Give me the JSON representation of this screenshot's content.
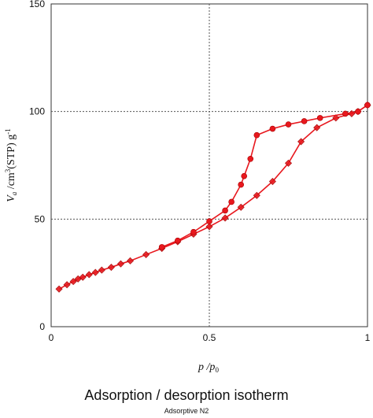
{
  "chart_data": {
    "type": "line",
    "title": "Adsorption / desorption isotherm",
    "subtitle": "Adsorptive N2",
    "xlabel": [
      "p",
      " /p",
      "0"
    ],
    "ylabel": [
      "V",
      "a",
      " /cm",
      "3",
      "(STP) g",
      "-1"
    ],
    "xlim": [
      0,
      1
    ],
    "xticks": [
      0,
      0.5,
      1
    ],
    "ylim": [
      0,
      150
    ],
    "yticks": [
      0,
      50,
      100,
      150
    ],
    "grid": true,
    "series": [
      {
        "color": "#e8181e",
        "marker": "diamond",
        "x": [
          0.025,
          0.05,
          0.07,
          0.085,
          0.1,
          0.12,
          0.14,
          0.16,
          0.19,
          0.22,
          0.25,
          0.3,
          0.35,
          0.4,
          0.45,
          0.5,
          0.55,
          0.6,
          0.65,
          0.7,
          0.75,
          0.79,
          0.84,
          0.9,
          0.95,
          0.97,
          1.0
        ],
        "values": [
          17.5,
          19.5,
          21,
          22.2,
          23,
          24.2,
          25.2,
          26.3,
          27.6,
          29.2,
          30.6,
          33.5,
          36.4,
          39.5,
          43,
          46.5,
          50.5,
          55.5,
          61,
          67.5,
          76,
          86,
          92.5,
          97,
          99,
          100,
          103
        ]
      },
      {
        "color": "#e8181e",
        "marker": "circle",
        "x": [
          1.0,
          0.97,
          0.93,
          0.85,
          0.8,
          0.75,
          0.7,
          0.65,
          0.63,
          0.61,
          0.6,
          0.57,
          0.55,
          0.5,
          0.45,
          0.4,
          0.35
        ],
        "values": [
          103,
          100,
          99,
          97,
          95.5,
          94,
          92,
          89,
          78,
          70,
          66,
          58,
          54,
          49,
          44,
          40,
          37
        ]
      }
    ]
  }
}
